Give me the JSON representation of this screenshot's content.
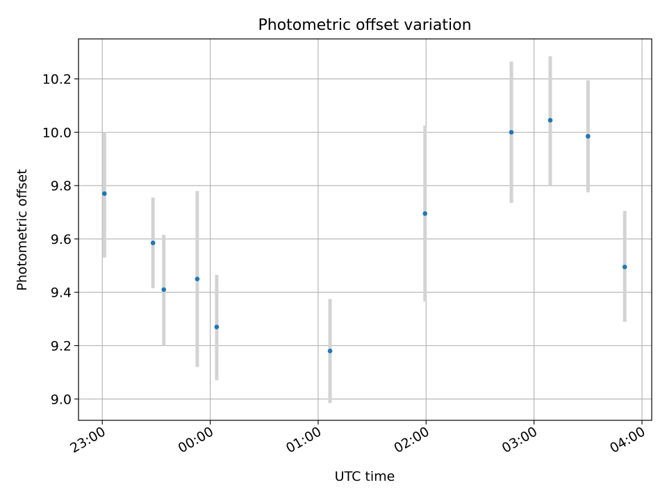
{
  "chart_data": {
    "type": "scatter",
    "title": "Photometric offset variation",
    "xlabel": "UTC time",
    "ylabel": "Photometric offset",
    "x_ticks": [
      "23:00",
      "00:00",
      "01:00",
      "02:00",
      "03:00",
      "04:00"
    ],
    "x_tick_hours": [
      23.0,
      24.0,
      25.0,
      26.0,
      27.0,
      28.0
    ],
    "xlim_hours": [
      22.78,
      28.09
    ],
    "y_ticks": [
      "9.0",
      "9.2",
      "9.4",
      "9.6",
      "9.8",
      "10.0",
      "10.2"
    ],
    "y_tick_values": [
      9.0,
      9.2,
      9.4,
      9.6,
      9.8,
      10.0,
      10.2
    ],
    "ylim": [
      8.92,
      10.35
    ],
    "grid": true,
    "marker_color": "#1f77b4",
    "errorbar_color": "#d3d3d3",
    "points": [
      {
        "time": "23:01",
        "x_hours": 23.02,
        "y": 9.77,
        "lo": 9.53,
        "hi": 10.0
      },
      {
        "time": "23:28",
        "x_hours": 23.47,
        "y": 9.585,
        "lo": 9.415,
        "hi": 9.755
      },
      {
        "time": "23:34",
        "x_hours": 23.57,
        "y": 9.41,
        "lo": 9.2,
        "hi": 9.615
      },
      {
        "time": "23:53",
        "x_hours": 23.88,
        "y": 9.45,
        "lo": 9.12,
        "hi": 9.78
      },
      {
        "time": "00:04",
        "x_hours": 24.06,
        "y": 9.27,
        "lo": 9.07,
        "hi": 9.465
      },
      {
        "time": "01:07",
        "x_hours": 25.11,
        "y": 9.18,
        "lo": 8.985,
        "hi": 9.375
      },
      {
        "time": "01:59",
        "x_hours": 25.99,
        "y": 9.695,
        "lo": 9.365,
        "hi": 10.025
      },
      {
        "time": "02:47",
        "x_hours": 26.79,
        "y": 10.0,
        "lo": 9.735,
        "hi": 10.265
      },
      {
        "time": "03:09",
        "x_hours": 27.15,
        "y": 10.045,
        "lo": 9.8,
        "hi": 10.285
      },
      {
        "time": "03:30",
        "x_hours": 27.5,
        "y": 9.985,
        "lo": 9.775,
        "hi": 10.195
      },
      {
        "time": "03:50",
        "x_hours": 27.84,
        "y": 9.495,
        "lo": 9.29,
        "hi": 9.705
      }
    ]
  }
}
